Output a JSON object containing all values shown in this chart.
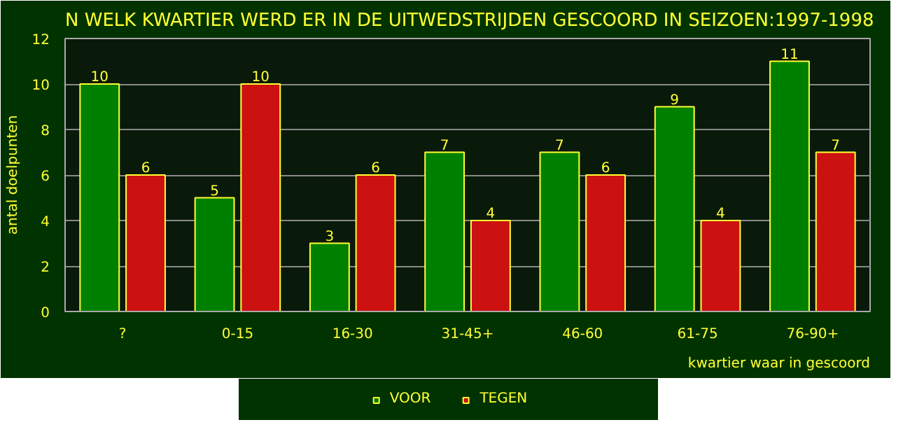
{
  "chart_data": {
    "type": "bar",
    "title": "N WELK KWARTIER WERD ER IN DE UITWEDSTRIJDEN GESCOORD IN SEIZOEN:1997-1998",
    "xlabel": "kwartier waar in gescoord",
    "ylabel": "antal doelpunten",
    "categories": [
      "?",
      "0-15",
      "16-30",
      "31-45+",
      "46-60",
      "61-75",
      "76-90+"
    ],
    "series": [
      {
        "name": "VOOR",
        "color": "#008000",
        "values": [
          10,
          5,
          3,
          7,
          7,
          9,
          11
        ]
      },
      {
        "name": "TEGEN",
        "color": "#cc1111",
        "values": [
          6,
          10,
          6,
          4,
          6,
          4,
          7
        ]
      }
    ],
    "ylim": [
      0,
      12
    ],
    "yticks": [
      0,
      2,
      4,
      6,
      8,
      10,
      12
    ],
    "grid": "y",
    "legend": "bottom",
    "data_labels": true
  }
}
